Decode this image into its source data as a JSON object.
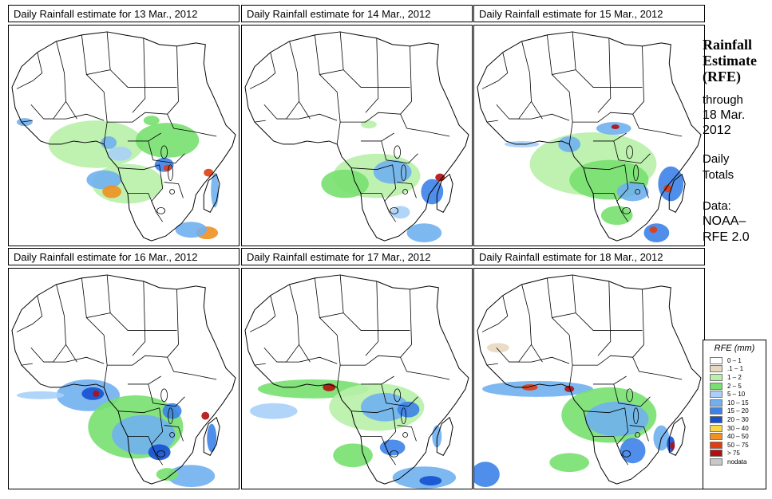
{
  "panels": [
    {
      "title": "Daily Rainfall estimate for  13 Mar., 2012"
    },
    {
      "title": "Daily Rainfall estimate for  14 Mar., 2012"
    },
    {
      "title": "Daily Rainfall estimate for  15 Mar., 2012"
    },
    {
      "title": "Daily Rainfall estimate for  16 Mar., 2012"
    },
    {
      "title": "Daily Rainfall estimate for  17 Mar., 2012"
    },
    {
      "title": "Daily Rainfall estimate for  18 Mar., 2012"
    }
  ],
  "sidebar": {
    "title_line1": "Rainfall",
    "title_line2": "Estimate",
    "title_line3": "(RFE)",
    "through": "through",
    "date_line1": "18 Mar.",
    "date_line2": "2012",
    "daily": "Daily",
    "totals": "Totals",
    "data_label": "Data:",
    "source_line1": "NOAA–",
    "source_line2": "RFE 2.0"
  },
  "legend": {
    "title": "RFE (mm)",
    "items": [
      {
        "label": "0 – 1",
        "color": "#ffffff"
      },
      {
        "label": ".1 – 1",
        "color": "#e8d8c0"
      },
      {
        "label": "1 – 2",
        "color": "#b8f0a8"
      },
      {
        "label": "2 – 5",
        "color": "#78e070"
      },
      {
        "label": "5 – 10",
        "color": "#a8d0f8"
      },
      {
        "label": "10 – 15",
        "color": "#70b0f0"
      },
      {
        "label": "15 – 20",
        "color": "#3c82e8"
      },
      {
        "label": "20 – 30",
        "color": "#1450d0"
      },
      {
        "label": "30 – 40",
        "color": "#f8d848"
      },
      {
        "label": "40 – 50",
        "color": "#f09020"
      },
      {
        "label": "50 – 75",
        "color": "#e03c10"
      },
      {
        "label": "> 75",
        "color": "#b01010"
      },
      {
        "label": "nodata",
        "color": "#c8c8c8"
      }
    ]
  }
}
